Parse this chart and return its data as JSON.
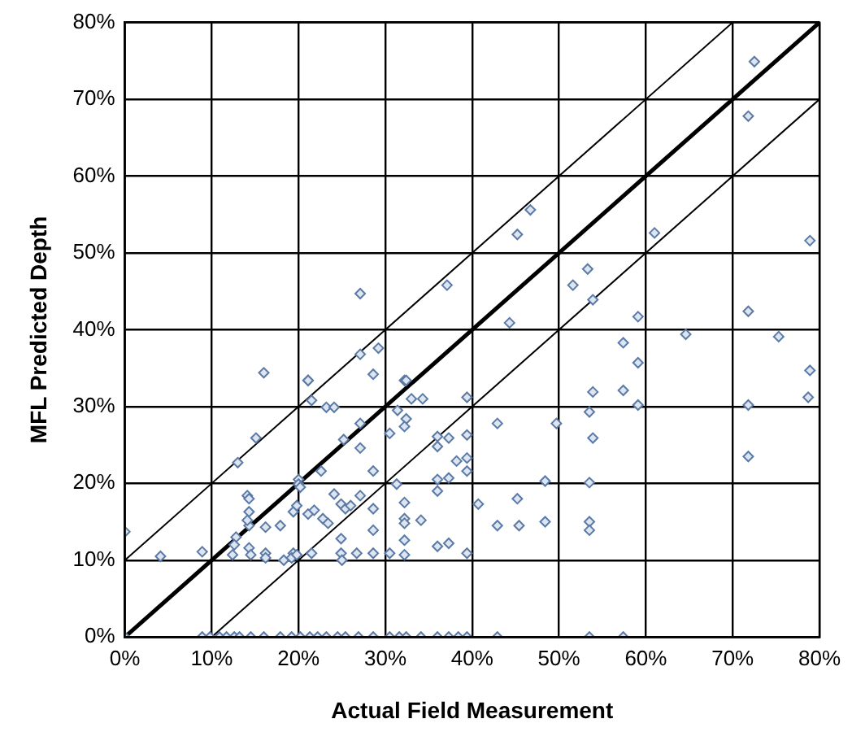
{
  "chart_data": {
    "type": "scatter",
    "xlabel": "Actual Field Measurement",
    "ylabel": "MFL Predicted Depth",
    "xlim": [
      0,
      80
    ],
    "ylim": [
      0,
      80
    ],
    "xticks": [
      {
        "value": 0,
        "label": "0%"
      },
      {
        "value": 10,
        "label": "10%"
      },
      {
        "value": 20,
        "label": "20%"
      },
      {
        "value": 30,
        "label": "30%"
      },
      {
        "value": 40,
        "label": "40%"
      },
      {
        "value": 50,
        "label": "50%"
      },
      {
        "value": 60,
        "label": "60%"
      },
      {
        "value": 70,
        "label": "70%"
      },
      {
        "value": 80,
        "label": "80%"
      }
    ],
    "yticks": [
      {
        "value": 0,
        "label": "0%"
      },
      {
        "value": 10,
        "label": "10%"
      },
      {
        "value": 20,
        "label": "20%"
      },
      {
        "value": 30,
        "label": "30%"
      },
      {
        "value": 40,
        "label": "40%"
      },
      {
        "value": 50,
        "label": "50%"
      },
      {
        "value": 60,
        "label": "60%"
      },
      {
        "value": 70,
        "label": "70%"
      },
      {
        "value": 80,
        "label": "80%"
      }
    ],
    "grid": true,
    "legend": false,
    "series": [
      {
        "color": "#5b7aa6",
        "marker": "diamond",
        "x": [
          72.5,
          71.8,
          78.9,
          61,
          46.7,
          45.2,
          37.1,
          53.3,
          51.6,
          53.9,
          59.1,
          44.3,
          71.8,
          64.6,
          75.3,
          57.4,
          59.1,
          78.9,
          27.1,
          16,
          21.1,
          27.1,
          29.2,
          28.6,
          32.2,
          57.4,
          78.7,
          59.1,
          71.8,
          71.8,
          32.4,
          34.3,
          39.4,
          53.9,
          53.5,
          42.9,
          49.7,
          53.9,
          36,
          36,
          37.3,
          39.4,
          38.2,
          39.4,
          39.4,
          36,
          37.3,
          36,
          48.4,
          53.5,
          40.7,
          45.2,
          42.9,
          45.4,
          48.4,
          53.5,
          53.5,
          32.2,
          32.2,
          32.2,
          34.1,
          32.2,
          36,
          37.3,
          32.2,
          39.4,
          0,
          4.1,
          8.9,
          15.1,
          13,
          14.1,
          14.3,
          14.3,
          14.3,
          16.2,
          17.9,
          12.8,
          12.6,
          14.3,
          12.4,
          14.5,
          16.2,
          16.2,
          18.3,
          19.4,
          19.2,
          19.8,
          21.5,
          20,
          20,
          20.2,
          19.4,
          19.8,
          21.1,
          21.8,
          22.6,
          23.2,
          24.1,
          21.5,
          21.1,
          27.1,
          25.2,
          28.6,
          24.1,
          22.8,
          23.4,
          24.9,
          25.4,
          26,
          27.1,
          24.9,
          24.9,
          25,
          26.7,
          28.6,
          28.6,
          28.6,
          30.5,
          30.5,
          31.3,
          32.4,
          32.2,
          31.4,
          33,
          27.1,
          14.1,
          0,
          8.9,
          9.8,
          10.9,
          11.7,
          12.6,
          13.2,
          14.5,
          16,
          17.9,
          19.2,
          20.2,
          21.3,
          22.2,
          23.2,
          24.5,
          25.4,
          26.9,
          28.6,
          30.5,
          31.6,
          32.4,
          34.1,
          36,
          37.3,
          38.4,
          39.4,
          42.9,
          53.5,
          57.4
        ],
        "values": [
          74.9,
          67.8,
          51.6,
          52.6,
          55.6,
          52.4,
          45.8,
          47.9,
          45.8,
          43.9,
          41.7,
          40.9,
          42.4,
          39.4,
          39.1,
          38.3,
          35.7,
          34.7,
          44.7,
          34.4,
          33.4,
          36.8,
          37.6,
          34.2,
          33.4,
          32.1,
          31.2,
          30.2,
          30.2,
          23.5,
          33.4,
          31,
          31.2,
          31.9,
          29.3,
          27.8,
          27.8,
          25.9,
          26.1,
          24.8,
          25.9,
          26.3,
          22.9,
          23.3,
          21.6,
          20.5,
          20.7,
          19,
          20.3,
          20.1,
          17.3,
          18,
          14.5,
          14.5,
          15,
          15,
          13.9,
          17.5,
          15.4,
          14.8,
          15.2,
          12.6,
          11.8,
          12.2,
          10.7,
          10.9,
          13.7,
          10.5,
          11.1,
          25.9,
          22.7,
          18.4,
          18,
          16.3,
          14.5,
          14.3,
          14.5,
          13,
          12,
          11.6,
          10.7,
          10.7,
          10.9,
          10.3,
          10,
          10.9,
          10.3,
          10.7,
          10.9,
          20.5,
          19.9,
          19.5,
          16.3,
          17.1,
          16,
          16.5,
          21.6,
          29.9,
          29.9,
          30.8,
          33.4,
          24.6,
          25.7,
          21.6,
          18.6,
          15.4,
          14.8,
          17.3,
          16.7,
          17.1,
          18.4,
          12.8,
          10.9,
          10,
          10.9,
          16.7,
          13.9,
          10.9,
          26.5,
          10.9,
          19.9,
          28.4,
          27.4,
          29.5,
          31,
          27.8,
          15.2,
          0,
          0,
          0,
          0,
          0,
          0,
          0,
          0,
          0,
          0,
          0,
          0,
          0,
          0,
          0,
          0,
          0,
          0,
          0,
          0,
          0,
          0,
          0,
          0,
          0,
          0,
          0,
          0,
          0,
          0
        ]
      },
      {
        "type": "line",
        "marker": "none",
        "color": "#000000",
        "x": [
          0,
          80
        ],
        "values": [
          0,
          80
        ]
      },
      {
        "type": "line",
        "marker": "none",
        "color": "#000000",
        "x": [
          0,
          70
        ],
        "values": [
          10,
          80
        ]
      },
      {
        "type": "line",
        "marker": "none",
        "color": "#000000",
        "x": [
          10,
          80
        ],
        "values": [
          0,
          70
        ]
      }
    ]
  }
}
